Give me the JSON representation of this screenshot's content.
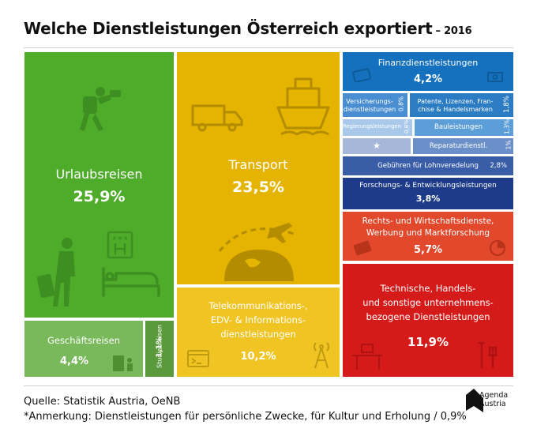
{
  "header": {
    "title": "Welche Dienstleistungen Österreich exportiert",
    "year": "– 2016"
  },
  "chart_data": {
    "type": "treemap",
    "title": "Welche Dienstleistungen Österreich exportiert",
    "subtitle": "2016",
    "unit": "%",
    "items": [
      {
        "label": "Urlaubsreisen",
        "value": "25,9%",
        "color": "#4fac2b"
      },
      {
        "label": "Transport",
        "value": "23,5%",
        "color": "#e5b400"
      },
      {
        "label": "Technische, Handels- und sonstige unternehmensbezogene Dienstleistungen",
        "value": "11,9%",
        "color": "#d51a1a"
      },
      {
        "label": "Telekommunikations-, EDV- & Informationsdienstleistungen",
        "value": "10,2%",
        "color": "#efc423"
      },
      {
        "label": "Rechts- und Wirtschaftsdienste, Werbung und Marktforschung",
        "value": "5,7%",
        "color": "#e2482b"
      },
      {
        "label": "Geschäftsreisen",
        "value": "4,4%",
        "color": "#79b85b"
      },
      {
        "label": "Finanzdienstleistungen",
        "value": "4,2%",
        "color": "#1571bd"
      },
      {
        "label": "Forschungs- & Entwicklungsleistungen",
        "value": "3,8%",
        "color": "#1e3b8a"
      },
      {
        "label": "Gebühren für Lohnveredelung",
        "value": "2,8%",
        "color": "#3a5da8"
      },
      {
        "label": "Patente, Lizenzen, Franchise & Handelsmarken",
        "value": "1,8%",
        "color": "#2c7cc4"
      },
      {
        "label": "Bauleistungen",
        "value": "1,3%",
        "color": "#5b9ed8"
      },
      {
        "label": "Studienreisen",
        "value": "1,1%",
        "color": "#5b9a3c"
      },
      {
        "label": "Reparaturdienstl.",
        "value": "1%",
        "color": "#6b8fc8"
      },
      {
        "label": "Versicherungsdienstleistungen",
        "value": "0,8%",
        "color": "#4a8ed2"
      },
      {
        "label": "Regierungsleistungen",
        "value": "0,8%",
        "color": "#a9c8ea"
      },
      {
        "label": "*",
        "value": "0,9%",
        "color": "#a7b7d9"
      }
    ]
  },
  "tiles": {
    "urlaub": {
      "label": "Urlaubsreisen",
      "value": "25,9%"
    },
    "transport": {
      "label": "Transport",
      "value": "23,5%"
    },
    "geschaeft": {
      "label": "Geschäftsreisen",
      "value": "4,4%"
    },
    "studien": {
      "label": "Studienreisen",
      "value": "1,1%"
    },
    "telekom": {
      "label1": "Telekommunikations-,",
      "label2": "EDV- & Informations-",
      "label3": "dienstleistungen",
      "value": "10,2%"
    },
    "finanz": {
      "label": "Finanzdienstleistungen",
      "value": "4,2%"
    },
    "versicherung": {
      "label1": "Versicherungs-",
      "label2": "dienstleistungen",
      "value": "0,8%"
    },
    "patente": {
      "label1": "Patente, Lizenzen, Fran-",
      "label2": "chise & Handelsmarken",
      "value": "1,8%"
    },
    "regierung": {
      "label": "Regierungsleistungen",
      "value": "0,8%"
    },
    "bau": {
      "label": "Bauleistungen",
      "value": "1,3%"
    },
    "star": {
      "label": "★"
    },
    "reparatur": {
      "label": "Reparaturdienstl.",
      "value": "1%"
    },
    "lohn": {
      "label": "Gebühren für Lohnveredelung",
      "value": "2,8%"
    },
    "forschung": {
      "label": "Forschungs- & Entwicklungsleistungen",
      "value": "3,8%"
    },
    "recht": {
      "label1": "Rechts- und Wirtschaftsdienste,",
      "label2": "Werbung und Marktforschung",
      "value": "5,7%"
    },
    "technik": {
      "label1": "Technische, Handels-",
      "label2": "und sonstige unternehmens-",
      "label3": "bezogene Dienstleistungen",
      "value": "11,9%"
    }
  },
  "footer": {
    "source": "Quelle: Statistik Austria, OeNB",
    "note": "*Anmerkung: Dienstleistungen für persönliche Zwecke, für Kultur und Erholung / 0,9%"
  },
  "logo": {
    "line1": "Agenda",
    "line2": "Austria"
  }
}
